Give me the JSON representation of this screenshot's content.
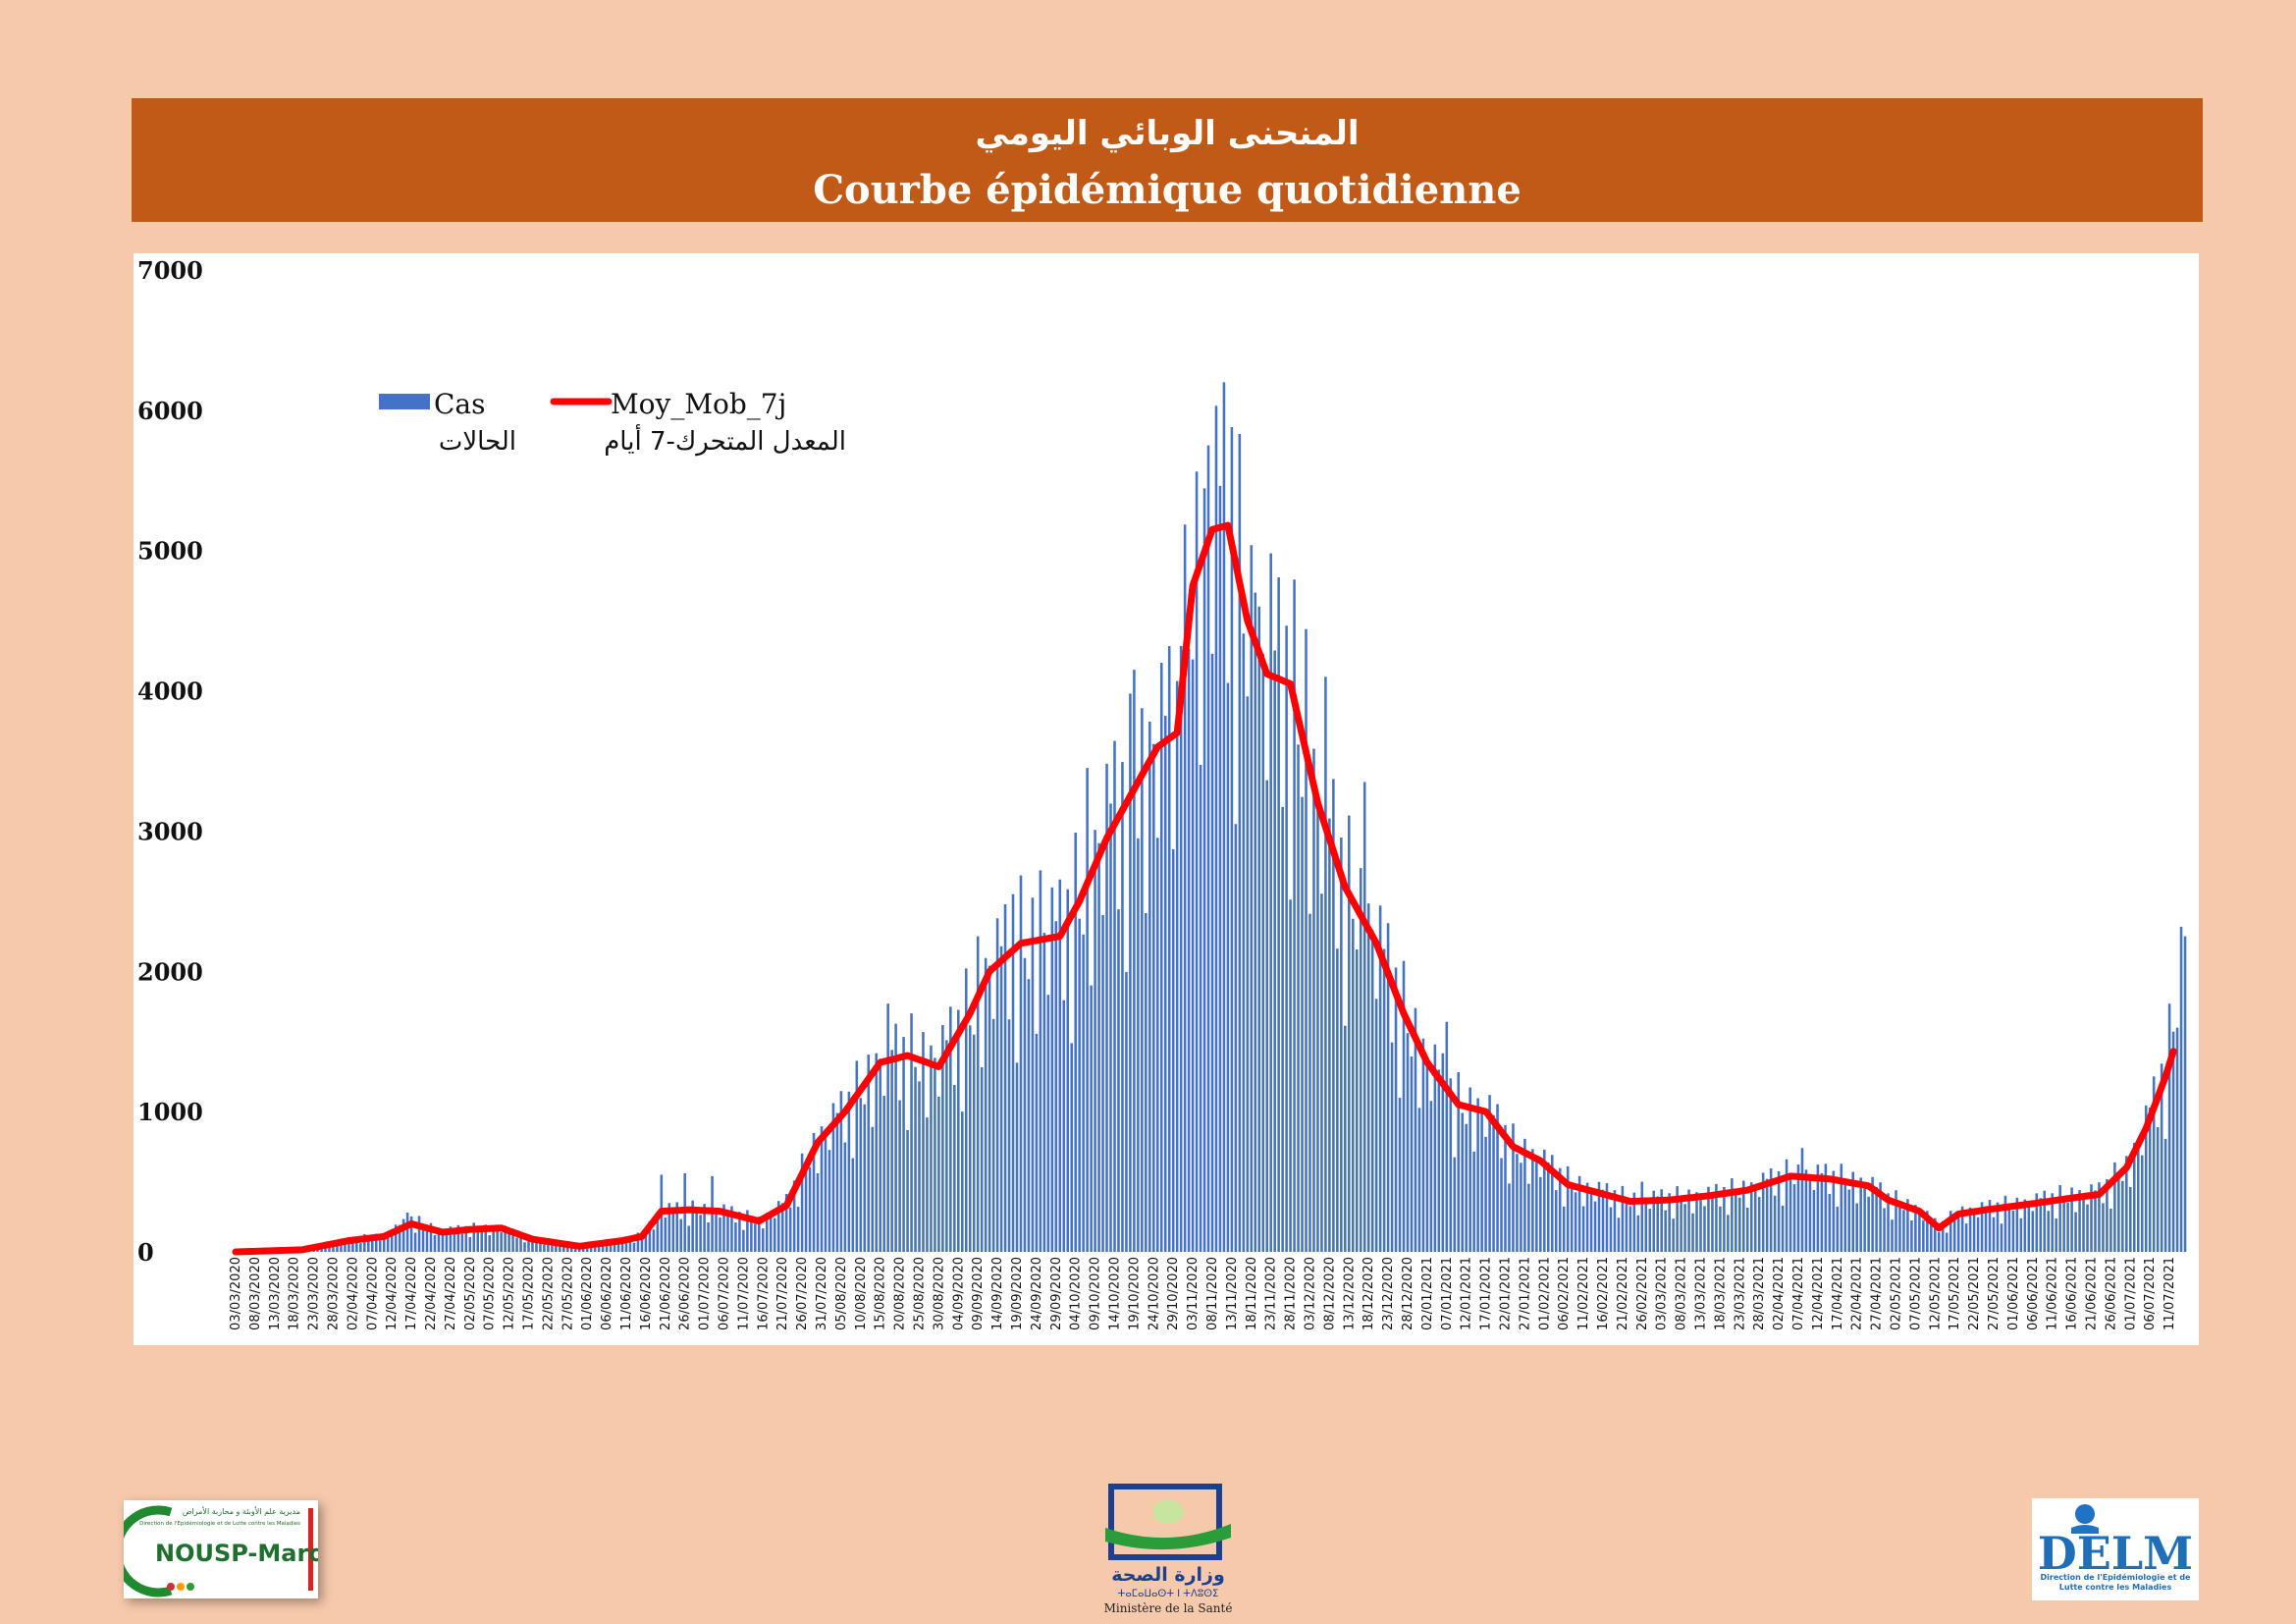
{
  "banner": {
    "title_ar": "المنحنى الوبائي اليومي",
    "title_fr": "Courbe épidémique quotidienne"
  },
  "chart_data": {
    "type": "bar",
    "title": "",
    "xlabel": "",
    "ylabel": "",
    "ylim": [
      0,
      7000
    ],
    "y_ticks": [
      0,
      1000,
      2000,
      3000,
      4000,
      5000,
      6000,
      7000
    ],
    "x_start": "03/03/2020",
    "x_end": "15/07/2021",
    "x_tick_labels": [
      "03/03/2020",
      "08/03/2020",
      "13/03/2020",
      "18/03/2020",
      "23/03/2020",
      "28/03/2020",
      "02/04/2020",
      "07/04/2020",
      "12/04/2020",
      "17/04/2020",
      "22/04/2020",
      "27/04/2020",
      "02/05/2020",
      "07/05/2020",
      "12/05/2020",
      "17/05/2020",
      "22/05/2020",
      "27/05/2020",
      "01/06/2020",
      "06/06/2020",
      "11/06/2020",
      "16/06/2020",
      "21/06/2020",
      "26/06/2020",
      "01/07/2020",
      "06/07/2020",
      "11/07/2020",
      "16/07/2020",
      "21/07/2020",
      "26/07/2020",
      "31/07/2020",
      "05/08/2020",
      "10/08/2020",
      "15/08/2020",
      "20/08/2020",
      "25/08/2020",
      "30/08/2020",
      "04/09/2020",
      "09/09/2020",
      "14/09/2020",
      "19/09/2020",
      "24/09/2020",
      "29/09/2020",
      "04/10/2020",
      "09/10/2020",
      "14/10/2020",
      "19/10/2020",
      "24/10/2020",
      "29/10/2020",
      "03/11/2020",
      "08/11/2020",
      "13/11/2020",
      "18/11/2020",
      "23/11/2020",
      "28/11/2020",
      "03/12/2020",
      "08/12/2020",
      "13/12/2020",
      "18/12/2020",
      "23/12/2020",
      "28/12/2020",
      "02/01/2021",
      "07/01/2021",
      "12/01/2021",
      "17/01/2021",
      "22/01/2021",
      "27/01/2021",
      "01/02/2021",
      "06/02/2021",
      "11/02/2021",
      "16/02/2021",
      "21/02/2021",
      "26/02/2021",
      "03/03/2021",
      "08/03/2021",
      "13/03/2021",
      "18/03/2021",
      "23/03/2021",
      "28/03/2021",
      "02/04/2021",
      "07/04/2021",
      "12/04/2021",
      "17/04/2021",
      "22/04/2021",
      "27/04/2021",
      "02/05/2021",
      "07/05/2021",
      "12/05/2021",
      "17/05/2021",
      "22/05/2021",
      "27/05/2021",
      "01/06/2021",
      "06/06/2021",
      "11/06/2021",
      "16/06/2021",
      "21/06/2021",
      "26/06/2021",
      "01/07/2021",
      "06/07/2021",
      "11/07/2021"
    ],
    "series": [
      {
        "name": "Cas",
        "name_ar": "الحالات",
        "type": "bar",
        "color": "#4472c4",
        "anchors": [
          [
            "03/03/2020",
            1
          ],
          [
            "20/03/2020",
            15
          ],
          [
            "01/04/2020",
            90
          ],
          [
            "10/04/2020",
            120
          ],
          [
            "17/04/2020",
            230
          ],
          [
            "25/04/2020",
            150
          ],
          [
            "02/05/2020",
            170
          ],
          [
            "10/05/2020",
            170
          ],
          [
            "18/05/2020",
            90
          ],
          [
            "30/05/2020",
            40
          ],
          [
            "10/06/2020",
            80
          ],
          [
            "15/06/2020",
            120
          ],
          [
            "20/06/2020",
            300
          ],
          [
            "27/06/2020",
            300
          ],
          [
            "05/07/2020",
            300
          ],
          [
            "15/07/2020",
            220
          ],
          [
            "22/07/2020",
            350
          ],
          [
            "30/07/2020",
            800
          ],
          [
            "06/08/2020",
            1000
          ],
          [
            "15/08/2020",
            1350
          ],
          [
            "22/08/2020",
            1400
          ],
          [
            "30/08/2020",
            1350
          ],
          [
            "07/09/2020",
            1700
          ],
          [
            "12/09/2020",
            2000
          ],
          [
            "20/09/2020",
            2200
          ],
          [
            "30/09/2020",
            2250
          ],
          [
            "05/10/2020",
            2500
          ],
          [
            "12/10/2020",
            3000
          ],
          [
            "20/10/2020",
            3350
          ],
          [
            "25/10/2020",
            3600
          ],
          [
            "30/10/2020",
            3700
          ],
          [
            "03/11/2020",
            4800
          ],
          [
            "08/11/2020",
            5200
          ],
          [
            "12/11/2020",
            5200
          ],
          [
            "17/11/2020",
            4500
          ],
          [
            "22/11/2020",
            4100
          ],
          [
            "28/11/2020",
            4050
          ],
          [
            "05/12/2020",
            3200
          ],
          [
            "12/12/2020",
            2600
          ],
          [
            "20/12/2020",
            2200
          ],
          [
            "27/12/2020",
            1700
          ],
          [
            "02/01/2021",
            1350
          ],
          [
            "10/01/2021",
            1050
          ],
          [
            "17/01/2021",
            1000
          ],
          [
            "24/01/2021",
            750
          ],
          [
            "31/01/2021",
            650
          ],
          [
            "07/02/2021",
            500
          ],
          [
            "15/02/2021",
            430
          ],
          [
            "23/02/2021",
            370
          ],
          [
            "05/03/2021",
            380
          ],
          [
            "15/03/2021",
            400
          ],
          [
            "25/03/2021",
            450
          ],
          [
            "05/04/2021",
            550
          ],
          [
            "15/04/2021",
            530
          ],
          [
            "25/04/2021",
            480
          ],
          [
            "30/04/2021",
            380
          ],
          [
            "08/05/2021",
            300
          ],
          [
            "13/05/2021",
            180
          ],
          [
            "18/05/2021",
            280
          ],
          [
            "25/05/2021",
            310
          ],
          [
            "05/06/2021",
            350
          ],
          [
            "15/06/2021",
            400
          ],
          [
            "23/06/2021",
            420
          ],
          [
            "30/06/2021",
            600
          ],
          [
            "05/07/2021",
            900
          ],
          [
            "10/07/2021",
            1300
          ],
          [
            "12/07/2021",
            1600
          ],
          [
            "15/07/2021",
            2250
          ]
        ],
        "peaks": [
          [
            "16/04/2020",
            280
          ],
          [
            "20/06/2020",
            550
          ],
          [
            "26/06/2020",
            560
          ],
          [
            "03/07/2020",
            540
          ],
          [
            "17/08/2020",
            1770
          ],
          [
            "09/09/2020",
            2250
          ],
          [
            "18/09/2020",
            2550
          ],
          [
            "25/09/2020",
            2720
          ],
          [
            "07/10/2020",
            3450
          ],
          [
            "19/10/2020",
            4150
          ],
          [
            "31/10/2020",
            4320
          ],
          [
            "07/11/2020",
            5750
          ],
          [
            "11/11/2020",
            6200
          ],
          [
            "13/11/2020",
            5880
          ],
          [
            "19/11/2020",
            4700
          ],
          [
            "23/11/2020",
            4980
          ],
          [
            "02/12/2020",
            4440
          ],
          [
            "07/12/2020",
            4100
          ],
          [
            "17/12/2020",
            3350
          ],
          [
            "07/01/2021",
            1640
          ],
          [
            "26/02/2021",
            500
          ],
          [
            "08/04/2021",
            740
          ],
          [
            "12/07/2021",
            1570
          ],
          [
            "15/07/2021",
            2250
          ]
        ]
      },
      {
        "name": "Moy_Mob_7j",
        "name_ar": "المعدل المتحرك-7 أيام",
        "type": "line",
        "color": "#ff0000",
        "anchors": [
          [
            "03/03/2020",
            0
          ],
          [
            "20/03/2020",
            15
          ],
          [
            "01/04/2020",
            80
          ],
          [
            "10/04/2020",
            110
          ],
          [
            "17/04/2020",
            200
          ],
          [
            "25/04/2020",
            140
          ],
          [
            "02/05/2020",
            160
          ],
          [
            "10/05/2020",
            170
          ],
          [
            "18/05/2020",
            90
          ],
          [
            "30/05/2020",
            40
          ],
          [
            "10/06/2020",
            80
          ],
          [
            "15/06/2020",
            110
          ],
          [
            "20/06/2020",
            290
          ],
          [
            "27/06/2020",
            300
          ],
          [
            "05/07/2020",
            290
          ],
          [
            "15/07/2020",
            220
          ],
          [
            "22/07/2020",
            330
          ],
          [
            "30/07/2020",
            780
          ],
          [
            "06/08/2020",
            1000
          ],
          [
            "15/08/2020",
            1350
          ],
          [
            "22/08/2020",
            1400
          ],
          [
            "30/08/2020",
            1320
          ],
          [
            "07/09/2020",
            1700
          ],
          [
            "12/09/2020",
            2000
          ],
          [
            "20/09/2020",
            2200
          ],
          [
            "30/09/2020",
            2250
          ],
          [
            "05/10/2020",
            2500
          ],
          [
            "12/10/2020",
            2950
          ],
          [
            "20/10/2020",
            3350
          ],
          [
            "25/10/2020",
            3600
          ],
          [
            "30/10/2020",
            3700
          ],
          [
            "03/11/2020",
            4750
          ],
          [
            "08/11/2020",
            5150
          ],
          [
            "12/11/2020",
            5180
          ],
          [
            "17/11/2020",
            4500
          ],
          [
            "22/11/2020",
            4120
          ],
          [
            "28/11/2020",
            4050
          ],
          [
            "05/12/2020",
            3200
          ],
          [
            "12/12/2020",
            2600
          ],
          [
            "20/12/2020",
            2200
          ],
          [
            "27/12/2020",
            1700
          ],
          [
            "02/01/2021",
            1350
          ],
          [
            "10/01/2021",
            1050
          ],
          [
            "17/01/2021",
            1000
          ],
          [
            "24/01/2021",
            750
          ],
          [
            "31/01/2021",
            650
          ],
          [
            "07/02/2021",
            480
          ],
          [
            "15/02/2021",
            420
          ],
          [
            "23/02/2021",
            360
          ],
          [
            "05/03/2021",
            370
          ],
          [
            "15/03/2021",
            400
          ],
          [
            "25/03/2021",
            440
          ],
          [
            "05/04/2021",
            540
          ],
          [
            "15/04/2021",
            520
          ],
          [
            "25/04/2021",
            470
          ],
          [
            "30/04/2021",
            370
          ],
          [
            "08/05/2021",
            290
          ],
          [
            "13/05/2021",
            170
          ],
          [
            "18/05/2021",
            270
          ],
          [
            "25/05/2021",
            300
          ],
          [
            "05/06/2021",
            340
          ],
          [
            "15/06/2021",
            380
          ],
          [
            "23/06/2021",
            410
          ],
          [
            "30/06/2021",
            600
          ],
          [
            "05/07/2021",
            880
          ],
          [
            "10/07/2021",
            1250
          ],
          [
            "12/07/2021",
            1430
          ]
        ]
      }
    ],
    "legend_position": "top-left"
  },
  "logos": {
    "left": {
      "text": "NOUSP-Maroc",
      "caption_ar": "مديرية علم الأوبئة و محاربة الأمراض",
      "caption_fr": "Direction de l'Epidémiologie et de Lutte contre les Maladies"
    },
    "center": {
      "text_ar": "وزارة الصحة",
      "text_tifinagh": "ⵜⴰⵎⴰⵡⴰⵙⵜ ⵏ ⵜⴷⵓⵙⵉ",
      "text_fr": "Ministère de la Santé"
    },
    "right": {
      "text": "DELM",
      "caption": "Direction de l'Epidémiologie et de Lutte contre les Maladies"
    }
  }
}
